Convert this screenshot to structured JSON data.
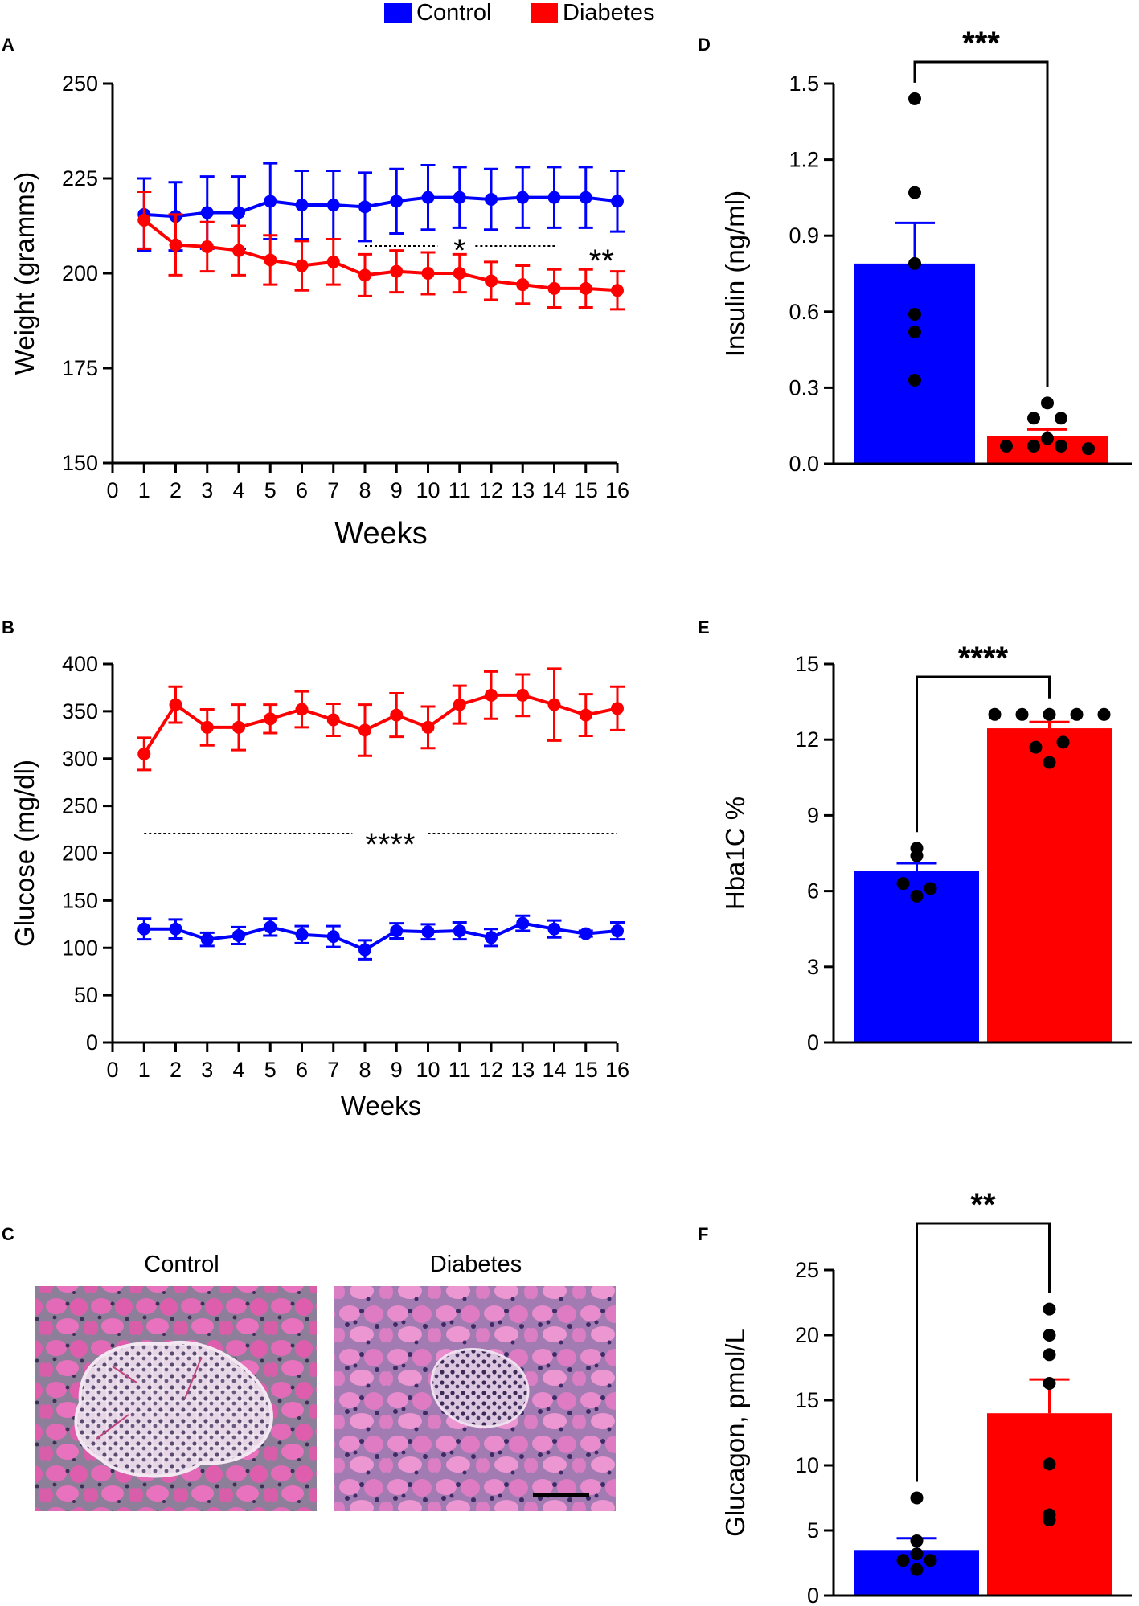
{
  "legend": [
    {
      "name": "Control",
      "color": "#0000ff"
    },
    {
      "name": "Diabetes",
      "color": "#ff0000"
    }
  ],
  "colors": {
    "control": "#0000ff",
    "diabetes": "#ff0000",
    "axis": "#000000"
  },
  "panels": {
    "A": {
      "label": "A"
    },
    "B": {
      "label": "B"
    },
    "C": {
      "label": "C",
      "image_titles": [
        "Control",
        "Diabetes"
      ]
    },
    "D": {
      "label": "D"
    },
    "E": {
      "label": "E"
    },
    "F": {
      "label": "F"
    }
  },
  "chart_data": [
    {
      "id": "A",
      "type": "line",
      "title": "",
      "xlabel": "Weeks",
      "ylabel": "Weight (gramms)",
      "xlim": [
        0,
        16
      ],
      "ylim": [
        150,
        250
      ],
      "xticks": [
        0,
        1,
        2,
        3,
        4,
        5,
        6,
        7,
        8,
        9,
        10,
        11,
        12,
        13,
        14,
        15,
        16
      ],
      "yticks": [
        150,
        175,
        200,
        225,
        250
      ],
      "x": [
        1,
        2,
        3,
        4,
        5,
        6,
        7,
        8,
        9,
        10,
        11,
        12,
        13,
        14,
        15,
        16
      ],
      "series": [
        {
          "name": "Control",
          "color": "#0000ff",
          "values": [
            215.5,
            215,
            216,
            216,
            219,
            218,
            218,
            217.5,
            219,
            220,
            220,
            219.5,
            220,
            220,
            220,
            219
          ],
          "error": [
            9.5,
            9,
            9.5,
            9.5,
            10,
            9,
            9,
            9,
            8.5,
            8.5,
            8,
            8,
            8,
            8,
            8,
            8
          ]
        },
        {
          "name": "Diabetes",
          "color": "#ff0000",
          "values": [
            214,
            207.5,
            207,
            206,
            203.5,
            202,
            203,
            199.5,
            200.5,
            200,
            200,
            198,
            197,
            196,
            196,
            195.5
          ],
          "error": [
            7.5,
            8,
            6.5,
            6.5,
            6.5,
            6.5,
            6,
            5.5,
            5.5,
            5.5,
            5,
            5,
            5,
            5,
            5,
            5
          ]
        }
      ],
      "annotations": [
        {
          "text": "*",
          "x_range": [
            8,
            14
          ]
        },
        {
          "text": "**",
          "x_range": [
            15,
            16
          ]
        }
      ]
    },
    {
      "id": "B",
      "type": "line",
      "title": "",
      "xlabel": "Weeks",
      "ylabel": "Glucose (mg/dl)",
      "xlim": [
        0,
        16
      ],
      "ylim": [
        0,
        400
      ],
      "xticks": [
        0,
        1,
        2,
        3,
        4,
        5,
        6,
        7,
        8,
        9,
        10,
        11,
        12,
        13,
        14,
        15,
        16
      ],
      "yticks": [
        0,
        50,
        100,
        150,
        200,
        250,
        300,
        350,
        400
      ],
      "x": [
        1,
        2,
        3,
        4,
        5,
        6,
        7,
        8,
        9,
        10,
        11,
        12,
        13,
        14,
        15,
        16
      ],
      "series": [
        {
          "name": "Diabetes",
          "color": "#ff0000",
          "values": [
            305,
            357,
            333,
            333,
            342,
            352,
            341,
            330,
            346,
            333,
            357,
            367,
            367,
            357,
            346,
            353
          ],
          "error": [
            17,
            19,
            19,
            24,
            15,
            19,
            17,
            27,
            23,
            22,
            20,
            25,
            22,
            38,
            22,
            23
          ]
        },
        {
          "name": "Control",
          "color": "#0000ff",
          "values": [
            120,
            120,
            109,
            113,
            122,
            114,
            112,
            98,
            118,
            117,
            118,
            111,
            126,
            120,
            115,
            118
          ],
          "error": [
            11,
            10,
            7,
            9,
            9,
            9,
            11,
            10,
            8,
            8,
            9,
            9,
            8,
            9,
            3,
            9
          ]
        }
      ],
      "annotations": [
        {
          "text": "****",
          "x_range": [
            1,
            16
          ]
        }
      ]
    },
    {
      "id": "D",
      "type": "bar",
      "title": "",
      "xlabel": "",
      "ylabel": "Insulin (ng/ml)",
      "ylim": [
        0,
        1.5
      ],
      "yticks": [
        "0.0",
        "0.3",
        "0.6",
        "0.9",
        "1.2",
        "1.5"
      ],
      "categories": [
        "Control",
        "Diabetes"
      ],
      "values": [
        0.79,
        0.11
      ],
      "error": [
        0.16,
        0.025
      ],
      "points": [
        [
          1.44,
          1.07,
          0.79,
          0.59,
          0.52,
          0.33
        ],
        [
          0.24,
          0.18,
          0.18,
          0.1,
          0.07,
          0.07,
          0.07,
          0.06
        ]
      ],
      "annotation": "***"
    },
    {
      "id": "E",
      "type": "bar",
      "title": "",
      "xlabel": "",
      "ylabel": "Hba1C %",
      "ylim": [
        0,
        15
      ],
      "yticks": [
        "0",
        "3",
        "6",
        "9",
        "12",
        "15"
      ],
      "categories": [
        "Control",
        "Diabetes"
      ],
      "values": [
        6.8,
        12.45
      ],
      "error": [
        0.3,
        0.25
      ],
      "points": [
        [
          7.7,
          7.4,
          6.3,
          5.8,
          6.1
        ],
        [
          13.0,
          13.0,
          13.0,
          13.0,
          13.0,
          11.7,
          11.9,
          11.1
        ]
      ],
      "annotation": "****"
    },
    {
      "id": "F",
      "type": "bar",
      "title": "",
      "xlabel": "",
      "ylabel": "Glucagon, pmol/L",
      "ylim": [
        0,
        25
      ],
      "yticks": [
        "0",
        "5",
        "10",
        "15",
        "20",
        "25"
      ],
      "categories": [
        "Control",
        "Diabetes"
      ],
      "values": [
        3.5,
        14.0
      ],
      "error": [
        0.9,
        2.6
      ],
      "points": [
        [
          7.5,
          4.2,
          3.2,
          2.7,
          2.7,
          2.0
        ],
        [
          22.0,
          20.0,
          18.5,
          16.3,
          10.1,
          6.2,
          5.8
        ]
      ],
      "annotation": "**"
    }
  ]
}
